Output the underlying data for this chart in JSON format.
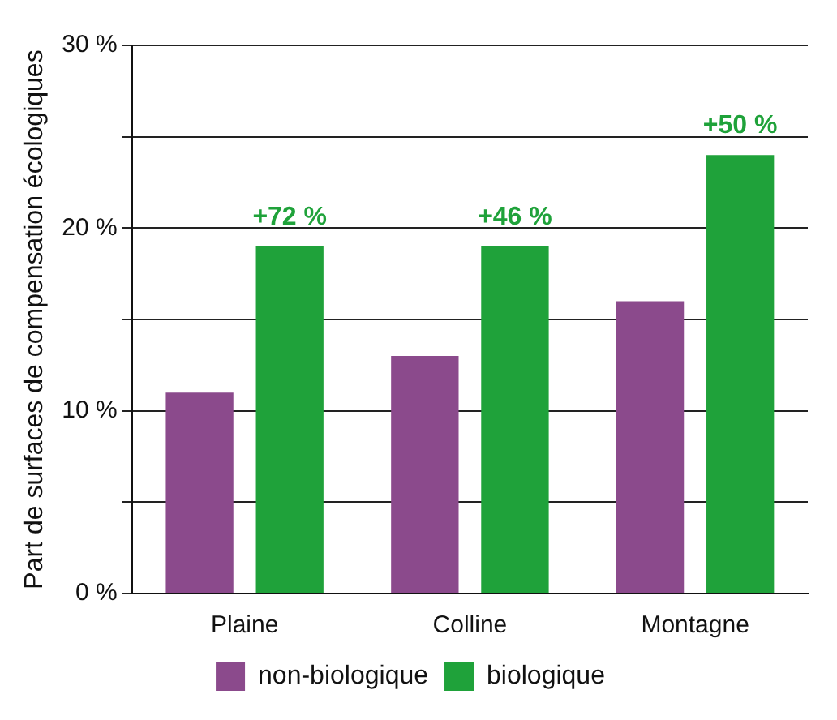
{
  "chart_data": {
    "type": "bar",
    "ylabel": "Part de surfaces de compensation écologiques",
    "categories": [
      "Plaine",
      "Colline",
      "Montagne"
    ],
    "series": [
      {
        "name": "non-biologique",
        "color": "#8b4a8c",
        "values": [
          11,
          13,
          16
        ]
      },
      {
        "name": "biologique",
        "color": "#1fa23a",
        "values": [
          19,
          19,
          24
        ]
      }
    ],
    "ylim": [
      0,
      30
    ],
    "yticks": [
      {
        "value": 0,
        "label": "0 %"
      },
      {
        "value": 5,
        "label": null
      },
      {
        "value": 10,
        "label": "10 %"
      },
      {
        "value": 15,
        "label": null
      },
      {
        "value": 20,
        "label": "20 %"
      },
      {
        "value": 25,
        "label": null
      },
      {
        "value": 30,
        "label": "30 %"
      }
    ],
    "grid": "y",
    "legend": "bottom",
    "annotations": [
      "+72 %",
      "+46 %",
      "+50 %"
    ]
  }
}
